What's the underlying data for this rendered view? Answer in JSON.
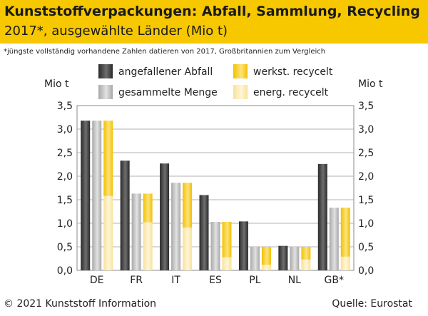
{
  "header": {
    "title": "Kunststoffverpackungen: Abfall, Sammlung, Recycling",
    "subtitle": "2017*, ausgewählte Länder (Mio t)"
  },
  "footnote": "*jüngste vollständig vorhandene Zahlen datieren von 2017, Großbritannien zum Vergleich",
  "footer": {
    "copyright": "© 2021 Kunststoff Information",
    "source": "Quelle: Eurostat"
  },
  "colors": {
    "header_bg": "#f7c800",
    "waste": "#3a3a3a",
    "collected": "#b8b8b8",
    "recycled_material": "#f7c800",
    "recycled_energy": "#fbe9a8"
  },
  "chart_data": {
    "type": "bar",
    "ylabel_left": "Mio t",
    "ylabel_right": "Mio t",
    "ylim": [
      0,
      3.5
    ],
    "yticks": [
      "0,0",
      "0,5",
      "1,0",
      "1,5",
      "2,0",
      "2,5",
      "3,0",
      "3,5"
    ],
    "grid": true,
    "legend_position": "top",
    "categories": [
      "DE",
      "FR",
      "IT",
      "ES",
      "PL",
      "NL",
      "GB*"
    ],
    "series": [
      {
        "name": "angefallener Abfall",
        "values": [
          3.18,
          2.33,
          2.27,
          1.6,
          1.04,
          0.52,
          2.26
        ]
      },
      {
        "name": "gesammelte Menge",
        "values": [
          3.18,
          1.63,
          1.86,
          1.03,
          0.5,
          0.5,
          1.33
        ]
      },
      {
        "name": "werkst. recycelt",
        "values": [
          1.6,
          0.61,
          0.95,
          0.75,
          0.38,
          0.27,
          1.04
        ],
        "stack": "recycled"
      },
      {
        "name": "energ. recycelt",
        "values": [
          1.58,
          1.02,
          0.91,
          0.28,
          0.12,
          0.23,
          0.29
        ],
        "stack": "recycled"
      }
    ]
  }
}
